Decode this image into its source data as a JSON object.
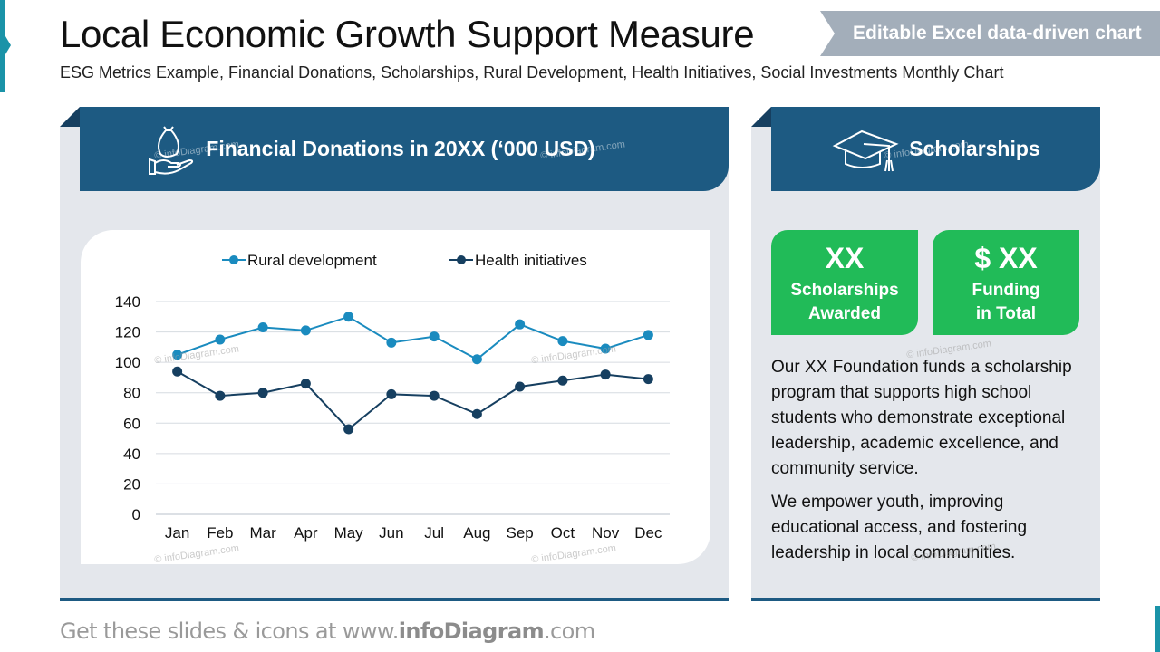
{
  "header": {
    "title": "Local Economic Growth Support Measure",
    "subtitle": "ESG Metrics Example, Financial Donations, Scholarships, Rural Development, Health Initiatives, Social Investments Monthly Chart",
    "badge": "Editable Excel data-driven chart"
  },
  "left_panel": {
    "title": "Financial Donations in 20XX (‘000 USD)",
    "icon": "hand-money-bag-icon"
  },
  "right_panel": {
    "title": "Scholarships",
    "icon": "graduation-cap-icon",
    "stats": [
      {
        "value": "XX",
        "label_line1": "Scholarships",
        "label_line2": "Awarded"
      },
      {
        "value": "$ XX",
        "label_line1": "Funding",
        "label_line2": "in Total"
      }
    ],
    "paragraphs": [
      "Our XX Foundation funds a scholarship program that supports high school students who demonstrate exceptional leadership, academic excellence, and community service.",
      "We empower youth, improving educational access, and fostering leadership in local communities."
    ]
  },
  "footer": {
    "prefix": "Get these slides & icons at www.",
    "brand": "infoDiagram",
    "suffix": ".com"
  },
  "watermark": "© infoDiagram.com",
  "colors": {
    "rural": "#1a8bbf",
    "health": "#163f60",
    "header_blue": "#1d5a82",
    "stat_green": "#21bb58",
    "panel_gray": "#e4e7ec",
    "accent_teal": "#1a93a8"
  },
  "chart_data": {
    "type": "line",
    "title": "Financial Donations in 20XX (‘000 USD)",
    "xlabel": "",
    "ylabel": "",
    "categories": [
      "Jan",
      "Feb",
      "Mar",
      "Apr",
      "May",
      "Jun",
      "Jul",
      "Aug",
      "Sep",
      "Oct",
      "Nov",
      "Dec"
    ],
    "series": [
      {
        "name": "Rural development",
        "color": "#1a8bbf",
        "values": [
          105,
          115,
          123,
          121,
          130,
          113,
          117,
          102,
          125,
          114,
          109,
          118
        ]
      },
      {
        "name": "Health initiatives",
        "color": "#163f60",
        "values": [
          94,
          78,
          80,
          86,
          56,
          79,
          78,
          66,
          84,
          88,
          92,
          89
        ]
      }
    ],
    "yticks": [
      0,
      20,
      40,
      60,
      80,
      100,
      120,
      140
    ],
    "ylim": [
      0,
      140
    ],
    "grid": true,
    "legend_position": "top",
    "markers": true
  }
}
